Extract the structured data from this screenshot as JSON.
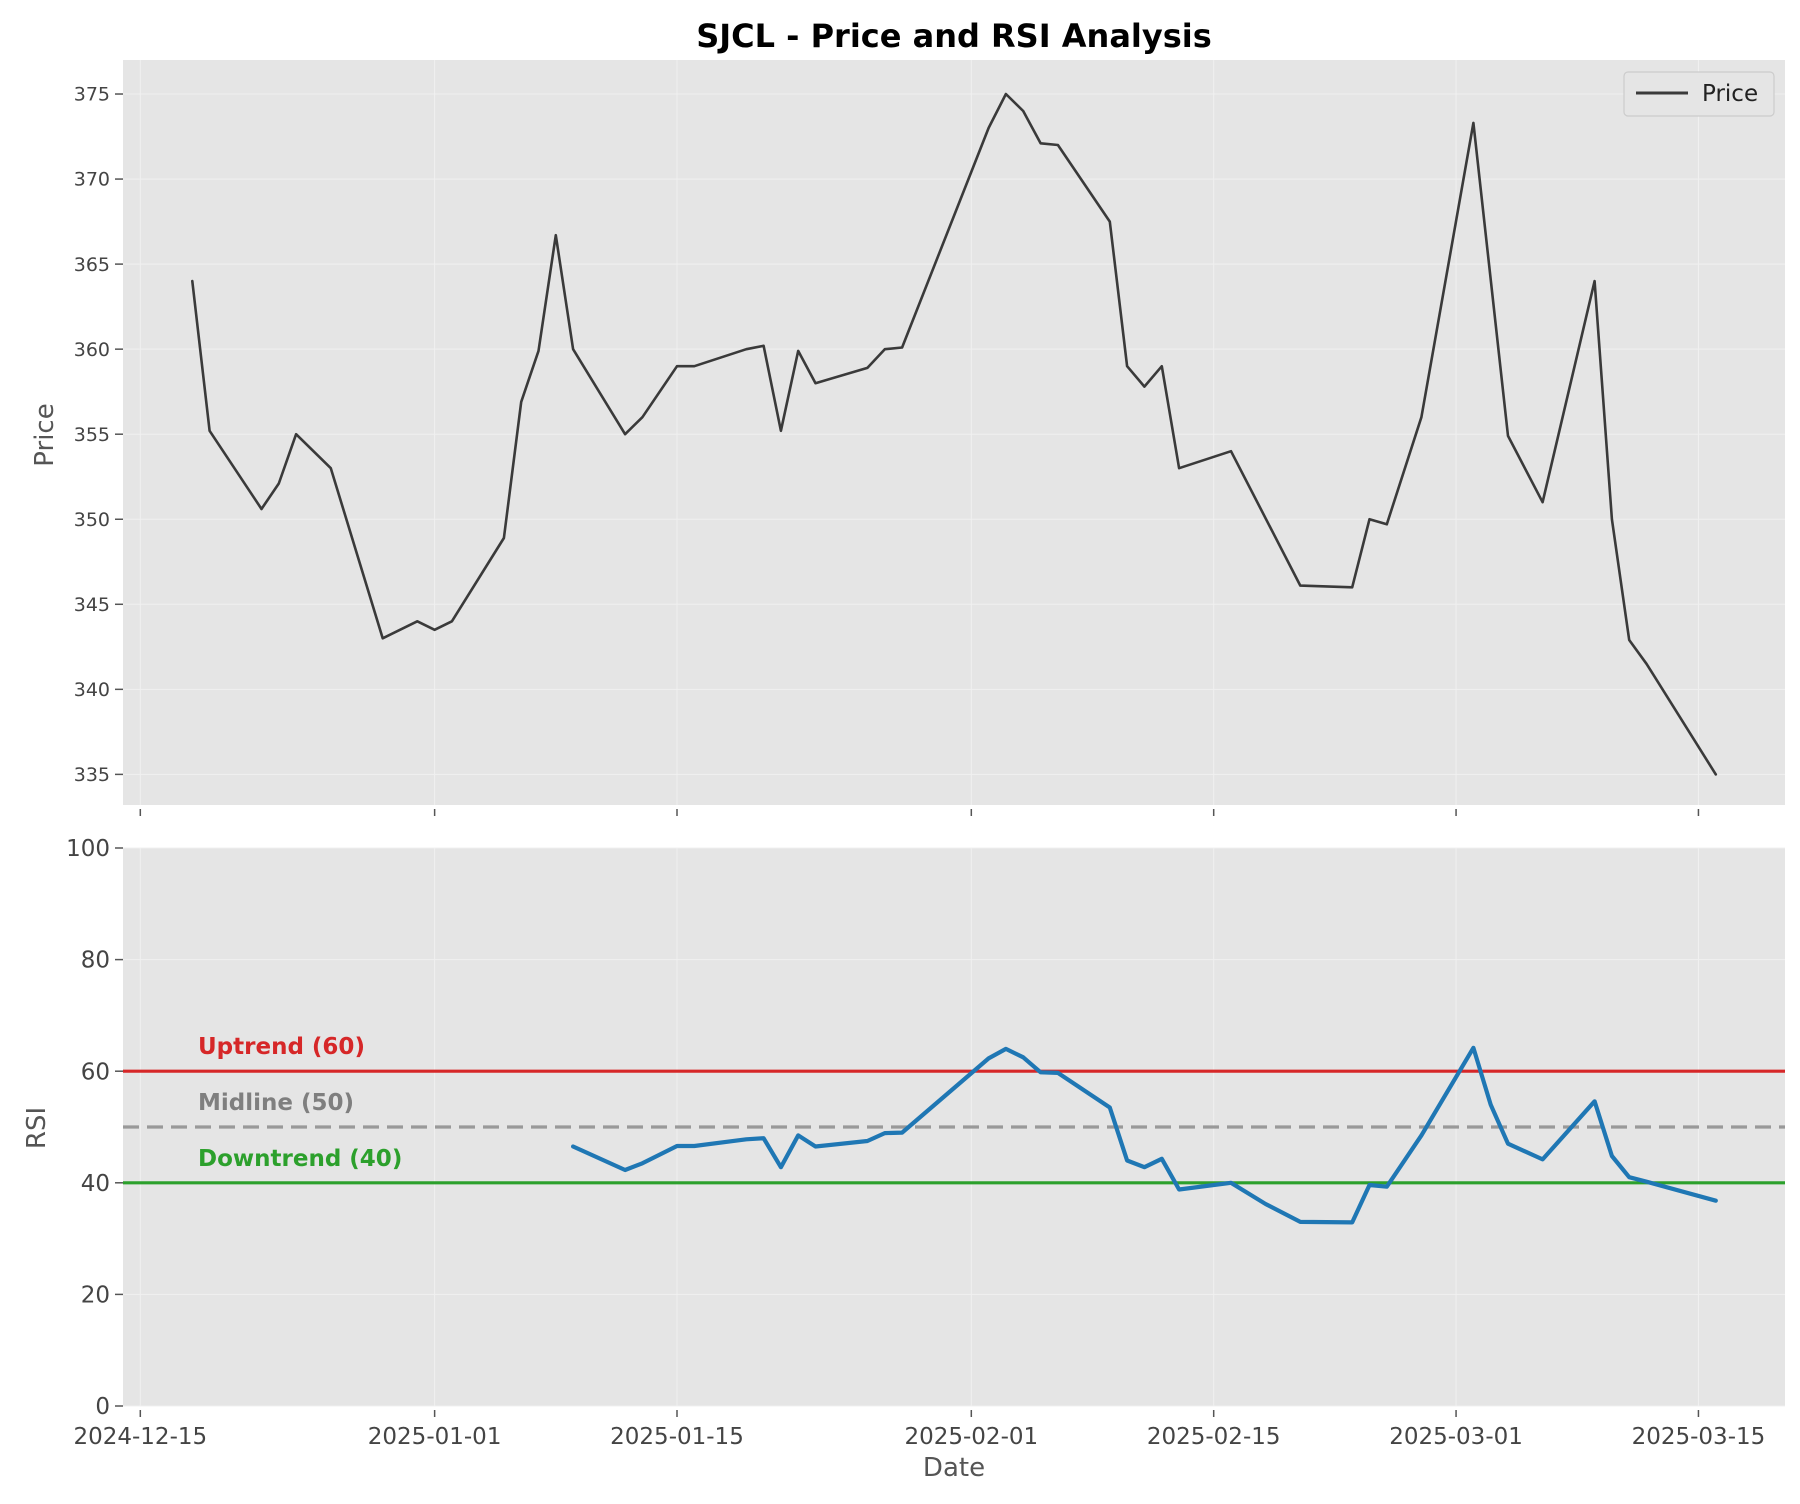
{
  "chart_data": {
    "type": "line",
    "title": "SJCL - Price and RSI Analysis",
    "xlabel": "Date",
    "x_ticks": [
      "2024-12-15",
      "2025-01-01",
      "2025-01-15",
      "2025-02-01",
      "2025-02-15",
      "2025-03-01",
      "2025-03-15"
    ],
    "x_range": [
      "2024-12-14",
      "2025-03-20"
    ],
    "colors": {
      "price": "#3a3a3a",
      "rsi": "#1f77b4",
      "uptrend": "#d62728",
      "midline": "#999999",
      "downtrend": "#2ca02c",
      "midline_label": "#7f7f7f",
      "panel_bg": "#e5e5e5",
      "grid": "#f0f0f0"
    },
    "panels": [
      {
        "ylabel": "Price",
        "ylim": [
          333.2,
          377
        ],
        "y_ticks": [
          335,
          340,
          345,
          350,
          355,
          360,
          365,
          370,
          375
        ],
        "grid": true,
        "legend": {
          "position": "top-right",
          "entries": [
            "Price"
          ]
        },
        "series": [
          {
            "name": "Price",
            "color": "#3a3a3a",
            "points": [
              [
                "2024-12-18",
                364.0
              ],
              [
                "2024-12-19",
                355.2
              ],
              [
                "2024-12-22",
                350.6
              ],
              [
                "2024-12-23",
                352.1
              ],
              [
                "2024-12-24",
                355.0
              ],
              [
                "2024-12-26",
                353.0
              ],
              [
                "2024-12-29",
                343.0
              ],
              [
                "2024-12-31",
                344.0
              ],
              [
                "2025-01-01",
                343.5
              ],
              [
                "2025-01-02",
                344.0
              ],
              [
                "2025-01-05",
                348.9
              ],
              [
                "2025-01-06",
                356.9
              ],
              [
                "2025-01-07",
                359.9
              ],
              [
                "2025-01-08",
                366.7
              ],
              [
                "2025-01-09",
                360.0
              ],
              [
                "2025-01-12",
                355.0
              ],
              [
                "2025-01-13",
                356.0
              ],
              [
                "2025-01-15",
                359.0
              ],
              [
                "2025-01-16",
                359.0
              ],
              [
                "2025-01-19",
                360.0
              ],
              [
                "2025-01-20",
                360.2
              ],
              [
                "2025-01-21",
                355.2
              ],
              [
                "2025-01-22",
                359.9
              ],
              [
                "2025-01-23",
                358.0
              ],
              [
                "2025-01-26",
                358.9
              ],
              [
                "2025-01-27",
                360.0
              ],
              [
                "2025-01-28",
                360.1
              ],
              [
                "2025-02-02",
                373.0
              ],
              [
                "2025-02-03",
                375.0
              ],
              [
                "2025-02-04",
                374.0
              ],
              [
                "2025-02-05",
                372.1
              ],
              [
                "2025-02-06",
                372.0
              ],
              [
                "2025-02-09",
                367.5
              ],
              [
                "2025-02-10",
                359.0
              ],
              [
                "2025-02-11",
                357.8
              ],
              [
                "2025-02-12",
                359.0
              ],
              [
                "2025-02-13",
                353.0
              ],
              [
                "2025-02-16",
                354.0
              ],
              [
                "2025-02-20",
                346.1
              ],
              [
                "2025-02-23",
                346.0
              ],
              [
                "2025-02-24",
                350.0
              ],
              [
                "2025-02-25",
                349.7
              ],
              [
                "2025-02-27",
                356.0
              ],
              [
                "2025-03-02",
                373.3
              ],
              [
                "2025-03-04",
                354.9
              ],
              [
                "2025-03-06",
                351.0
              ],
              [
                "2025-03-09",
                364.0
              ],
              [
                "2025-03-10",
                350.0
              ],
              [
                "2025-03-11",
                342.9
              ],
              [
                "2025-03-12",
                341.5
              ],
              [
                "2025-03-16",
                335.0
              ]
            ]
          }
        ]
      },
      {
        "ylabel": "RSI",
        "ylim": [
          0,
          100
        ],
        "y_ticks": [
          0,
          20,
          40,
          60,
          80,
          100
        ],
        "grid": true,
        "reference_lines": [
          {
            "label": "Uptrend (60)",
            "y": 60,
            "color": "#d62728",
            "style": "solid"
          },
          {
            "label": "Midline (50)",
            "y": 50,
            "color": "#999999",
            "style": "dashed"
          },
          {
            "label": "Downtrend (40)",
            "y": 40,
            "color": "#2ca02c",
            "style": "solid"
          }
        ],
        "series": [
          {
            "name": "RSI",
            "color": "#1f77b4",
            "points": [
              [
                "2025-01-09",
                46.5
              ],
              [
                "2025-01-12",
                42.3
              ],
              [
                "2025-01-13",
                43.5
              ],
              [
                "2025-01-15",
                46.6
              ],
              [
                "2025-01-16",
                46.6
              ],
              [
                "2025-01-19",
                47.8
              ],
              [
                "2025-01-20",
                48.0
              ],
              [
                "2025-01-21",
                42.8
              ],
              [
                "2025-01-22",
                48.5
              ],
              [
                "2025-01-23",
                46.5
              ],
              [
                "2025-01-26",
                47.5
              ],
              [
                "2025-01-27",
                48.9
              ],
              [
                "2025-01-28",
                49.0
              ],
              [
                "2025-02-02",
                62.3
              ],
              [
                "2025-02-03",
                64.0
              ],
              [
                "2025-02-04",
                62.5
              ],
              [
                "2025-02-05",
                59.8
              ],
              [
                "2025-02-06",
                59.7
              ],
              [
                "2025-02-09",
                53.5
              ],
              [
                "2025-02-10",
                44.0
              ],
              [
                "2025-02-11",
                42.8
              ],
              [
                "2025-02-12",
                44.3
              ],
              [
                "2025-02-13",
                38.8
              ],
              [
                "2025-02-16",
                40.0
              ],
              [
                "2025-02-18",
                36.2
              ],
              [
                "2025-02-20",
                33.0
              ],
              [
                "2025-02-23",
                32.9
              ],
              [
                "2025-02-24",
                39.6
              ],
              [
                "2025-02-25",
                39.3
              ],
              [
                "2025-02-27",
                48.5
              ],
              [
                "2025-03-02",
                64.2
              ],
              [
                "2025-03-03",
                54.0
              ],
              [
                "2025-03-04",
                47.0
              ],
              [
                "2025-03-06",
                44.2
              ],
              [
                "2025-03-09",
                54.6
              ],
              [
                "2025-03-10",
                44.8
              ],
              [
                "2025-03-11",
                41.0
              ],
              [
                "2025-03-12",
                40.2
              ],
              [
                "2025-03-16",
                36.8
              ]
            ]
          }
        ]
      }
    ]
  }
}
